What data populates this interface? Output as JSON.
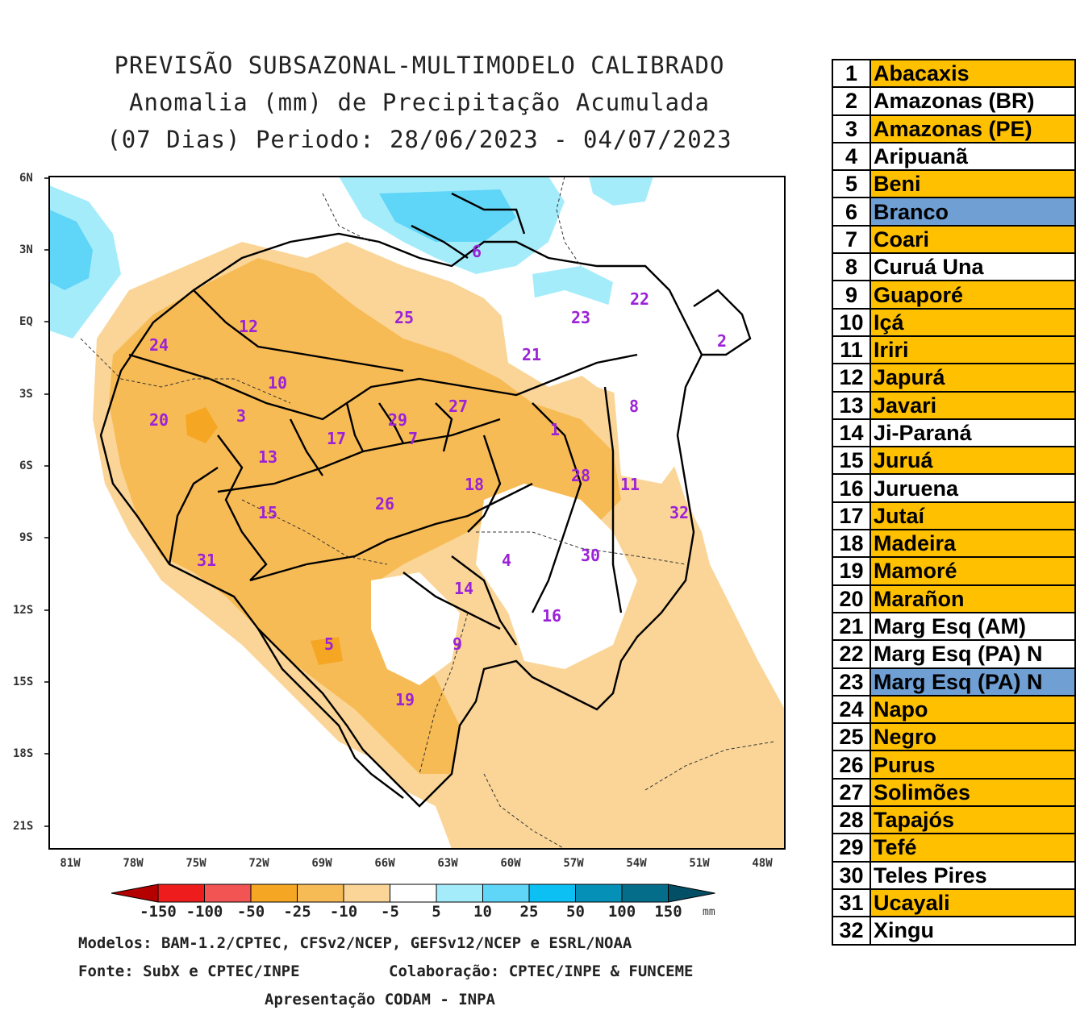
{
  "title": {
    "line1": "PREVISÃO SUBSAZONAL-MULTIMODELO CALIBRADO",
    "line2": "Anomalia (mm) de Precipitação Acumulada",
    "line3": "(07 Dias) Periodo: 28/06/2023 - 04/07/2023"
  },
  "axes": {
    "lat_labels": [
      "6N",
      "3N",
      "EQ",
      "3S",
      "6S",
      "9S",
      "12S",
      "15S",
      "18S",
      "21S"
    ],
    "lon_labels": [
      "81W",
      "78W",
      "75W",
      "72W",
      "69W",
      "66W",
      "63W",
      "60W",
      "57W",
      "54W",
      "51W",
      "48W"
    ]
  },
  "colorbar": {
    "unit": "mm",
    "tick_labels": [
      "-150",
      "-100",
      "-50",
      "-25",
      "-10",
      "-5",
      "5",
      "10",
      "25",
      "50",
      "100",
      "150"
    ],
    "colors": [
      "#b40000",
      "#ee1c1c",
      "#f25454",
      "#f5a623",
      "#f7bb55",
      "#fad597",
      "#ffffff",
      "#a5ecfb",
      "#5fd5f7",
      "#0cc0f4",
      "#0590b8",
      "#046e8a",
      "#034f66"
    ]
  },
  "basin_numbers": [
    "1",
    "2",
    "3",
    "4",
    "5",
    "6",
    "7",
    "8",
    "9",
    "10",
    "11",
    "12",
    "13",
    "14",
    "15",
    "16",
    "17",
    "18",
    "19",
    "20",
    "21",
    "22",
    "23",
    "24",
    "25",
    "26",
    "27",
    "28",
    "29",
    "30",
    "31",
    "32"
  ],
  "footer": {
    "models": "Modelos: BAM-1.2/CPTEC, CFSv2/NCEP, GEFSv12/NCEP e ESRL/NOAA",
    "source": "Fonte: SubX e CPTEC/INPE",
    "collab": "Colaboração: CPTEC/INPE & FUNCEME",
    "presentation": "Apresentação CODAM - INPA"
  },
  "legend": [
    {
      "num": "1",
      "name": "Abacaxis",
      "color": "#ffc000"
    },
    {
      "num": "2",
      "name": "Amazonas (BR)",
      "color": "#ffffff"
    },
    {
      "num": "3",
      "name": "Amazonas (PE)",
      "color": "#ffc000"
    },
    {
      "num": "4",
      "name": "Aripuanã",
      "color": "#ffffff"
    },
    {
      "num": "5",
      "name": "Beni",
      "color": "#ffc000"
    },
    {
      "num": "6",
      "name": "Branco",
      "color": "#6f9fd3"
    },
    {
      "num": "7",
      "name": "Coari",
      "color": "#ffc000"
    },
    {
      "num": "8",
      "name": "Curuá Una",
      "color": "#ffffff"
    },
    {
      "num": "9",
      "name": "Guaporé",
      "color": "#ffc000"
    },
    {
      "num": "10",
      "name": "Içá",
      "color": "#ffc000"
    },
    {
      "num": "11",
      "name": "Iriri",
      "color": "#ffc000"
    },
    {
      "num": "12",
      "name": "Japurá",
      "color": "#ffc000"
    },
    {
      "num": "13",
      "name": "Javari",
      "color": "#ffc000"
    },
    {
      "num": "14",
      "name": "Ji-Paraná",
      "color": "#ffffff"
    },
    {
      "num": "15",
      "name": "Juruá",
      "color": "#ffc000"
    },
    {
      "num": "16",
      "name": "Juruena",
      "color": "#ffffff"
    },
    {
      "num": "17",
      "name": "Jutaí",
      "color": "#ffc000"
    },
    {
      "num": "18",
      "name": "Madeira",
      "color": "#ffc000"
    },
    {
      "num": "19",
      "name": "Mamoré",
      "color": "#ffc000"
    },
    {
      "num": "20",
      "name": "Marañon",
      "color": "#ffc000"
    },
    {
      "num": "21",
      "name": "Marg Esq (AM)",
      "color": "#ffffff"
    },
    {
      "num": "22",
      "name": "Marg Esq (PA) N",
      "color": "#ffffff"
    },
    {
      "num": "23",
      "name": "Marg Esq (PA) N",
      "color": "#6f9fd3"
    },
    {
      "num": "24",
      "name": "Napo",
      "color": "#ffc000"
    },
    {
      "num": "25",
      "name": "Negro",
      "color": "#ffc000"
    },
    {
      "num": "26",
      "name": "Purus",
      "color": "#ffc000"
    },
    {
      "num": "27",
      "name": "Solimões",
      "color": "#ffc000"
    },
    {
      "num": "28",
      "name": "Tapajós",
      "color": "#ffc000"
    },
    {
      "num": "29",
      "name": "Tefé",
      "color": "#ffc000"
    },
    {
      "num": "30",
      "name": "Teles Pires",
      "color": "#ffffff"
    },
    {
      "num": "31",
      "name": "Ucayali",
      "color": "#ffc000"
    },
    {
      "num": "32",
      "name": "Xingu",
      "color": "#ffffff"
    }
  ]
}
